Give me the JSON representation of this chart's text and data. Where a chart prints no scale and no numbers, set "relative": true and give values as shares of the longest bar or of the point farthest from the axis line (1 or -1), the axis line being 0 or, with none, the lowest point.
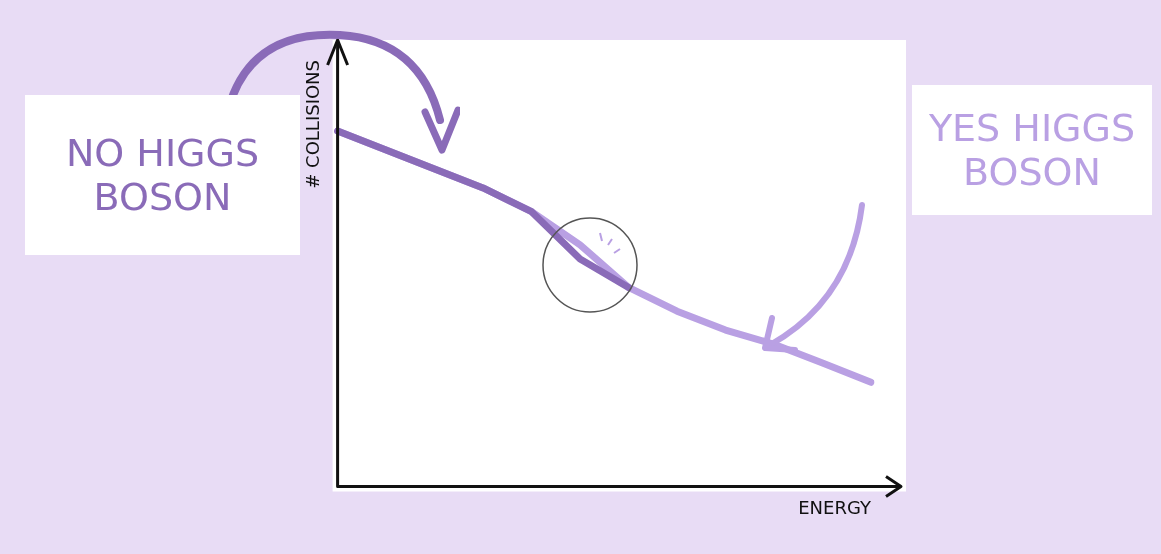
{
  "chart_data": {
    "type": "line",
    "xlabel": "ENERGY",
    "ylabel": "# COLLISIONS",
    "relative": true,
    "categories": [
      null,
      null,
      null,
      null,
      null,
      null,
      null,
      null,
      null,
      null,
      null,
      null
    ],
    "series": [
      {
        "name": "NO HIGGS BOSON",
        "color": "#8a6bb8",
        "values": [
          1.0,
          0.947,
          0.893,
          0.84,
          0.773,
          0.64,
          0.56,
          null,
          null,
          null,
          null,
          null
        ]
      },
      {
        "name": "YES HIGGS BOSON",
        "color": "#b9a0e3",
        "values": [
          1.0,
          0.947,
          0.893,
          0.84,
          0.773,
          0.68,
          0.56,
          0.493,
          0.44,
          0.4,
          0.347,
          0.293
        ]
      }
    ]
  }
}
